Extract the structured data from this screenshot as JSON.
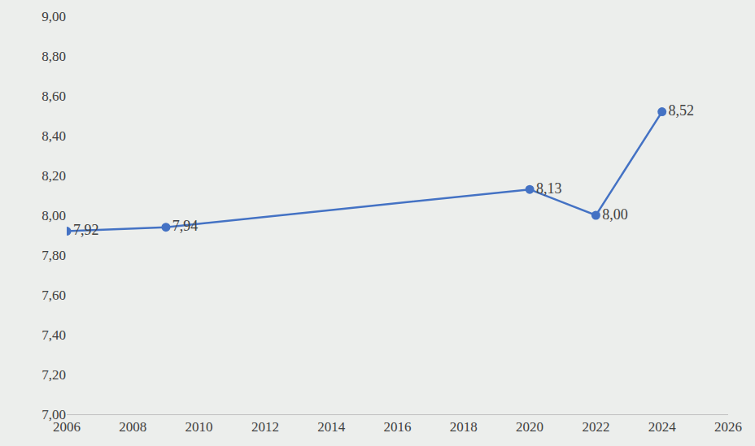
{
  "chart_data": {
    "type": "line",
    "x": [
      2006,
      2009,
      2020,
      2022,
      2024
    ],
    "values": [
      7.92,
      7.94,
      8.13,
      8.0,
      8.52
    ],
    "value_labels": [
      "7,92",
      "7,94",
      "8,13",
      "8,00",
      "8,52"
    ],
    "data_labels": true,
    "color": "#4472c4",
    "marker": "circle",
    "line_style": "solid",
    "grid": false,
    "xlim": [
      2006,
      2026
    ],
    "xticks": [
      2006,
      2008,
      2010,
      2012,
      2014,
      2016,
      2018,
      2020,
      2022,
      2024,
      2026
    ],
    "ylim": [
      7,
      9
    ],
    "yticks": [
      {
        "value": 7.0,
        "label": "7,00"
      },
      {
        "value": 7.2,
        "label": "7,20"
      },
      {
        "value": 7.4,
        "label": "7,40"
      },
      {
        "value": 7.6,
        "label": "7,60"
      },
      {
        "value": 7.8,
        "label": "7,80"
      },
      {
        "value": 8.0,
        "label": "8,00"
      },
      {
        "value": 8.2,
        "label": "8,20"
      },
      {
        "value": 8.4,
        "label": "8,40"
      },
      {
        "value": 8.6,
        "label": "8,60"
      },
      {
        "value": 8.8,
        "label": "8,80"
      },
      {
        "value": 9.0,
        "label": "9,00"
      }
    ]
  }
}
